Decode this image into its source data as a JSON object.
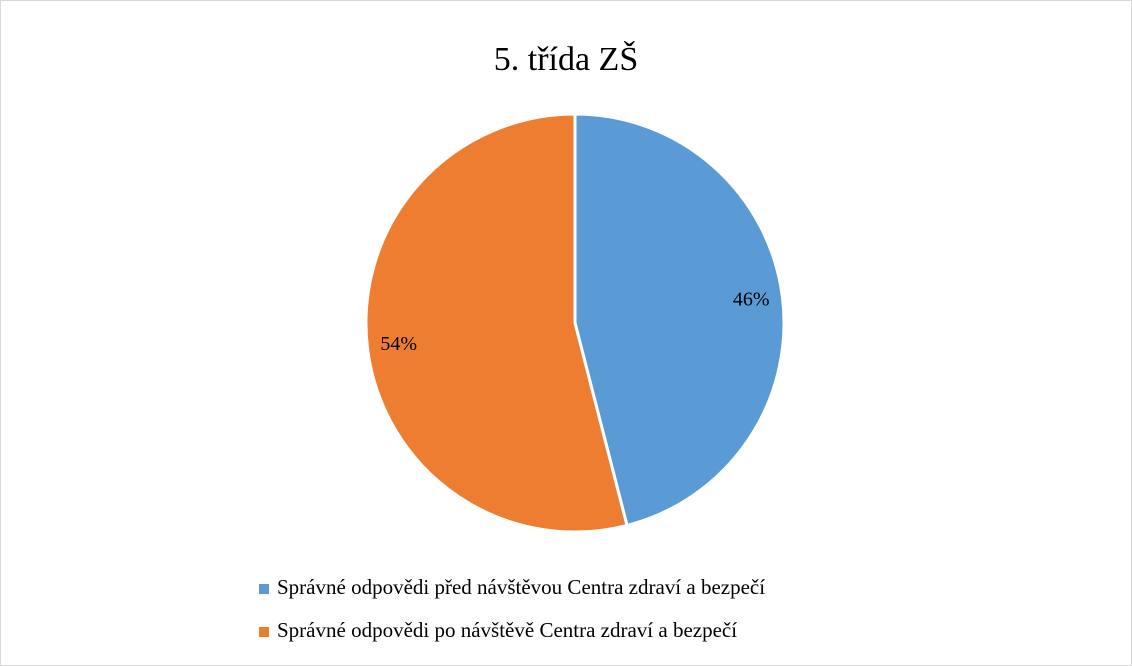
{
  "chart_data": {
    "type": "pie",
    "title": "5. třída ZŠ",
    "categories": [
      "Správné odpovědi před návštěvou Centra zdraví a bezpečí",
      "Správné odpovědi po návštěvě Centra zdraví a bezpečí"
    ],
    "values": [
      46,
      54
    ],
    "value_labels": [
      "46%",
      "54%"
    ],
    "colors": [
      "#5b9bd5",
      "#ed7d31"
    ],
    "legend": "bottom"
  }
}
